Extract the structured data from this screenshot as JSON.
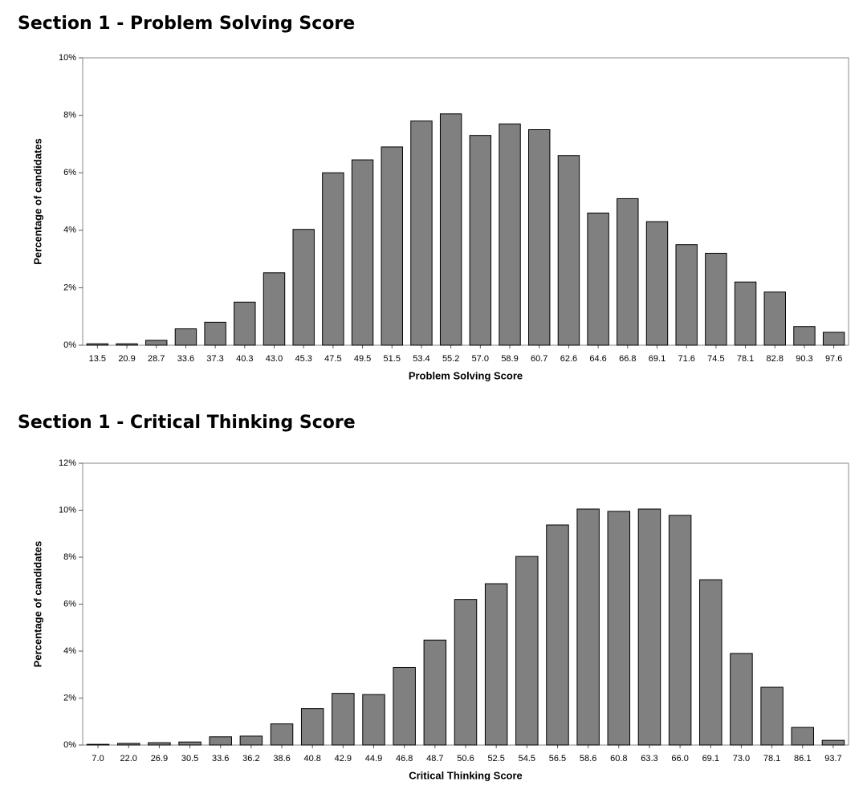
{
  "chart_data": [
    {
      "type": "bar",
      "title": "Section 1 - Problem Solving Score",
      "xlabel": "Problem Solving Score",
      "ylabel": "Percentage of candidates",
      "categories": [
        "13.5",
        "20.9",
        "28.7",
        "33.6",
        "37.3",
        "40.3",
        "43.0",
        "45.3",
        "47.5",
        "49.5",
        "51.5",
        "53.4",
        "55.2",
        "57.0",
        "58.9",
        "60.7",
        "62.6",
        "64.6",
        "66.8",
        "69.1",
        "71.6",
        "74.5",
        "78.1",
        "82.8",
        "90.3",
        "97.6"
      ],
      "values": [
        0.05,
        0.05,
        0.17,
        0.57,
        0.8,
        1.5,
        2.52,
        4.03,
        6.0,
        6.45,
        6.9,
        7.8,
        8.05,
        7.3,
        7.7,
        7.5,
        6.6,
        4.6,
        5.1,
        4.3,
        3.5,
        3.2,
        2.2,
        1.85,
        0.65,
        0.45
      ],
      "color": "#808080",
      "ylim": [
        0,
        10
      ],
      "yticks": [
        {
          "value": 0,
          "label": "0%"
        },
        {
          "value": 2,
          "label": "2%"
        },
        {
          "value": 4,
          "label": "4%"
        },
        {
          "value": 6,
          "label": "6%"
        },
        {
          "value": 8,
          "label": "8%"
        },
        {
          "value": 10,
          "label": "10%"
        }
      ]
    },
    {
      "type": "bar",
      "title": "Section 1 - Critical Thinking Score",
      "xlabel": "Critical Thinking Score",
      "ylabel": "Percentage of candidates",
      "categories": [
        "7.0",
        "22.0",
        "26.9",
        "30.5",
        "33.6",
        "36.2",
        "38.6",
        "40.8",
        "42.9",
        "44.9",
        "46.8",
        "48.7",
        "50.6",
        "52.5",
        "54.5",
        "56.5",
        "58.6",
        "60.8",
        "63.3",
        "66.0",
        "69.1",
        "73.0",
        "78.1",
        "86.1",
        "93.7"
      ],
      "values": [
        0.03,
        0.07,
        0.1,
        0.13,
        0.35,
        0.38,
        0.9,
        1.55,
        2.2,
        2.15,
        3.3,
        4.47,
        6.2,
        6.87,
        8.03,
        9.37,
        10.05,
        9.95,
        10.05,
        9.78,
        7.04,
        3.9,
        2.46,
        0.75,
        0.2
      ],
      "color": "#808080",
      "ylim": [
        0,
        12
      ],
      "yticks": [
        {
          "value": 0,
          "label": "0%"
        },
        {
          "value": 2,
          "label": "2%"
        },
        {
          "value": 4,
          "label": "4%"
        },
        {
          "value": 6,
          "label": "6%"
        },
        {
          "value": 8,
          "label": "8%"
        },
        {
          "value": 10,
          "label": "10%"
        },
        {
          "value": 12,
          "label": "12%"
        }
      ]
    }
  ]
}
